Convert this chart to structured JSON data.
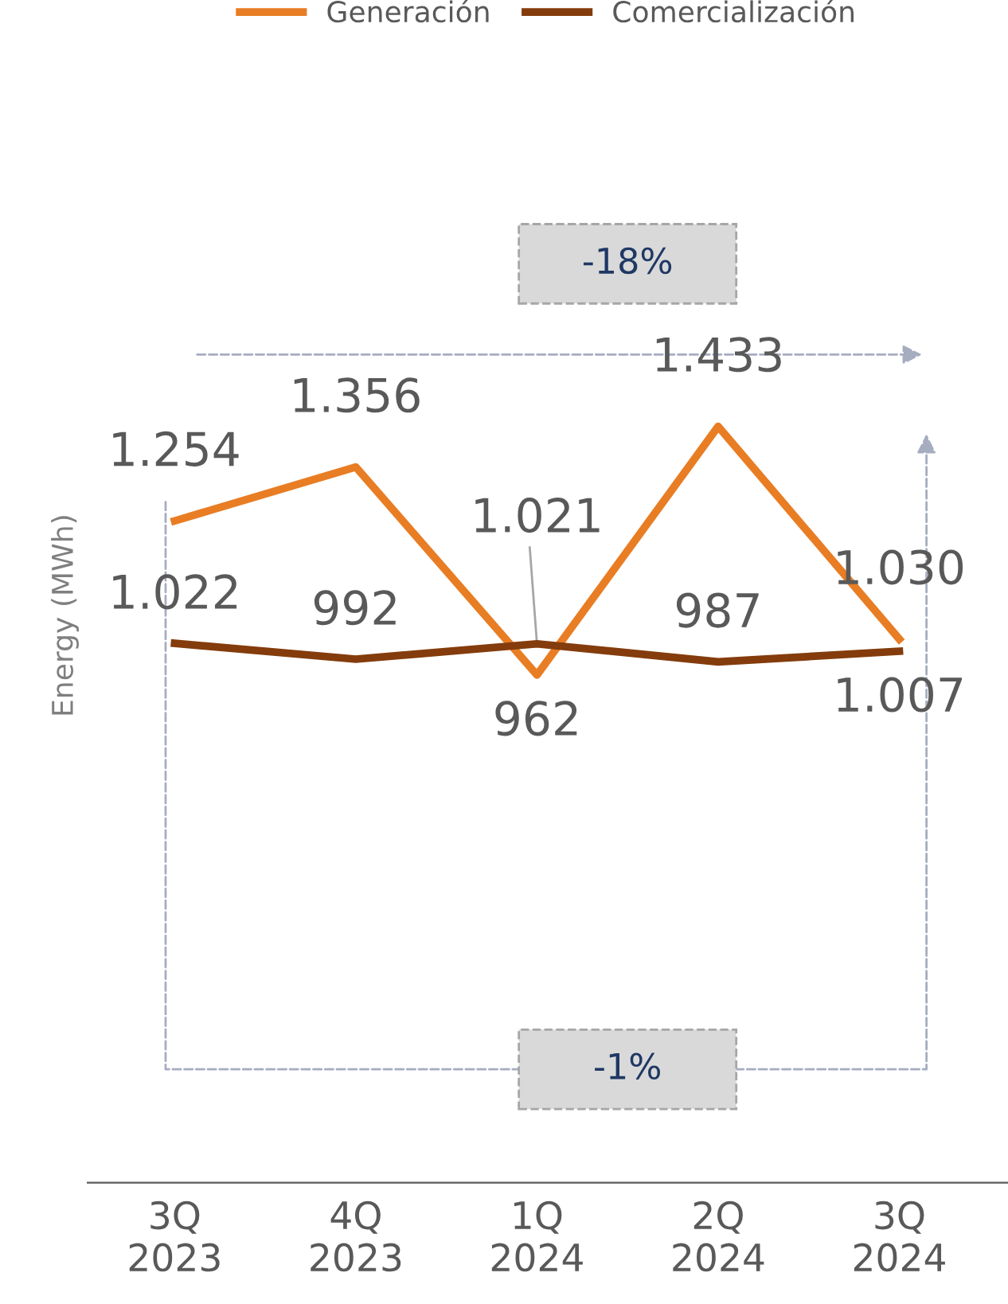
{
  "chart_data": {
    "type": "line",
    "ylabel": "Energy (MWh)",
    "categories": [
      "3Q\n2023",
      "4Q\n2023",
      "1Q\n2024",
      "2Q\n2024",
      "3Q\n2024"
    ],
    "series": [
      {
        "name": "Generación",
        "color": "#e87d24",
        "values": [
          1254,
          1356,
          962,
          1433,
          1030
        ],
        "value_labels": [
          "1.254",
          "1.356",
          "962",
          "1.433",
          "1.030"
        ]
      },
      {
        "name": "Comercialización",
        "color": "#843c0c",
        "values": [
          1022,
          992,
          1021,
          987,
          1007
        ],
        "value_labels": [
          "1.022",
          "992",
          "1.021",
          "987",
          "1.007"
        ]
      }
    ],
    "tick_labels": "x",
    "legend": "top",
    "grid": false,
    "marker": "none",
    "line_style": "solid",
    "annotations": [
      "-18%",
      "-1%"
    ]
  }
}
